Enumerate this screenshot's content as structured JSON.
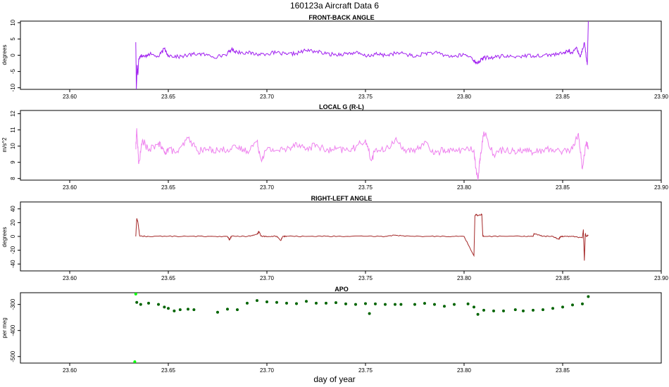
{
  "figure": {
    "title": "160123a   Aircraft Data 6",
    "xlabel": "day of year"
  },
  "chart_data": [
    {
      "type": "line",
      "title": "FRONT-BACK ANGLE",
      "ylabel": "degrees",
      "color": "#a020f0",
      "xlim": [
        23.575,
        23.9
      ],
      "ylim": [
        -10.5,
        10.5
      ],
      "xticks": [
        "23.60",
        "23.65",
        "23.70",
        "23.75",
        "23.80",
        "23.85",
        "23.90"
      ],
      "yticks": [
        "-10",
        "-5",
        "0",
        "5",
        "10"
      ],
      "series": [
        {
          "x": [
            23.6335,
            23.6338,
            23.6342,
            23.6346,
            23.635,
            23.636,
            23.638,
            23.64,
            23.645,
            23.648,
            23.65,
            23.655,
            23.66,
            23.665,
            23.67,
            23.675,
            23.68,
            23.682,
            23.685,
            23.69,
            23.695,
            23.7,
            23.705,
            23.71,
            23.715,
            23.72,
            23.725,
            23.73,
            23.735,
            23.74,
            23.745,
            23.75,
            23.755,
            23.76,
            23.765,
            23.77,
            23.775,
            23.78,
            23.785,
            23.79,
            23.795,
            23.8,
            23.804,
            23.806,
            23.808,
            23.81,
            23.815,
            23.82,
            23.825,
            23.83,
            23.835,
            23.84,
            23.845,
            23.85,
            23.853,
            23.855,
            23.857,
            23.859,
            23.861,
            23.8625,
            23.863
          ],
          "y": [
            4,
            -10.5,
            -3,
            -6,
            -1,
            0,
            -0.5,
            0.5,
            -0.5,
            2,
            0,
            -0.5,
            0,
            0.5,
            0,
            -0.5,
            0.5,
            1.8,
            1,
            0.8,
            0.3,
            0.5,
            0.8,
            0.2,
            0.6,
            1.5,
            1.2,
            0.4,
            0.2,
            0.5,
            0.8,
            -0.3,
            0.3,
            0,
            0.6,
            0.5,
            -0.5,
            0.6,
            0.8,
            0,
            -0.4,
            0.2,
            -0.8,
            -2.5,
            -1.8,
            -0.8,
            -0.6,
            -0.3,
            -0.5,
            -0.2,
            -0.1,
            0,
            0.2,
            0.5,
            1.5,
            0.5,
            2.5,
            -0.5,
            4,
            -3,
            10.5
          ]
        }
      ]
    },
    {
      "type": "line",
      "title": "LOCAL G (R-L)",
      "ylabel": "m/s^2",
      "color": "#ee82ee",
      "xlim": [
        23.575,
        23.9
      ],
      "ylim": [
        7.9,
        12.2
      ],
      "xticks": [
        "23.60",
        "23.65",
        "23.70",
        "23.75",
        "23.80",
        "23.85",
        "23.90"
      ],
      "yticks": [
        "8",
        "9",
        "10",
        "11",
        "12"
      ],
      "series": [
        {
          "x": [
            23.6335,
            23.634,
            23.635,
            23.637,
            23.64,
            23.645,
            23.648,
            23.65,
            23.655,
            23.66,
            23.665,
            23.67,
            23.675,
            23.68,
            23.685,
            23.69,
            23.695,
            23.697,
            23.7,
            23.705,
            23.71,
            23.715,
            23.72,
            23.725,
            23.73,
            23.735,
            23.74,
            23.745,
            23.75,
            23.753,
            23.755,
            23.76,
            23.765,
            23.77,
            23.775,
            23.78,
            23.785,
            23.79,
            23.795,
            23.8,
            23.805,
            23.806,
            23.807,
            23.808,
            23.81,
            23.815,
            23.82,
            23.825,
            23.83,
            23.835,
            23.84,
            23.845,
            23.85,
            23.855,
            23.858,
            23.86,
            23.862,
            23.863
          ],
          "y": [
            9.8,
            11.1,
            8.9,
            10.4,
            9.7,
            10.2,
            9.6,
            9.8,
            9.6,
            10.5,
            9.7,
            9.8,
            9.75,
            9.8,
            9.9,
            9.7,
            10.3,
            9.2,
            9.8,
            9.75,
            9.8,
            10.2,
            9.8,
            10.1,
            9.7,
            9.8,
            9.75,
            9.9,
            10.4,
            9.1,
            9.8,
            9.7,
            10.4,
            9.8,
            9.6,
            10.3,
            9.5,
            9.8,
            9.7,
            9.8,
            9.75,
            8.6,
            7.9,
            9.2,
            10.9,
            9.5,
            9.8,
            9.7,
            9.8,
            9.6,
            9.75,
            9.8,
            9.7,
            9.8,
            10.8,
            8.6,
            10.3,
            9.8
          ]
        }
      ]
    },
    {
      "type": "line",
      "title": "RIGHT-LEFT ANGLE",
      "ylabel": "degrees",
      "color": "#a52a2a",
      "xlim": [
        23.575,
        23.9
      ],
      "ylim": [
        -50,
        50
      ],
      "xticks": [
        "23.60",
        "23.65",
        "23.70",
        "23.75",
        "23.80",
        "23.85",
        "23.90"
      ],
      "yticks": [
        "-40",
        "-20",
        "0",
        "20",
        "40"
      ],
      "series": [
        {
          "x": [
            23.6335,
            23.634,
            23.6345,
            23.6355,
            23.64,
            23.65,
            23.66,
            23.67,
            23.68,
            23.681,
            23.682,
            23.69,
            23.695,
            23.696,
            23.697,
            23.7,
            23.705,
            23.707,
            23.708,
            23.71,
            23.72,
            23.73,
            23.74,
            23.75,
            23.76,
            23.765,
            23.77,
            23.78,
            23.79,
            23.8,
            23.805,
            23.8055,
            23.806,
            23.807,
            23.809,
            23.8095,
            23.81,
            23.82,
            23.83,
            23.835,
            23.8355,
            23.84,
            23.845,
            23.848,
            23.849,
            23.85,
            23.855,
            23.86,
            23.8605,
            23.861,
            23.8615,
            23.862,
            23.863
          ],
          "y": [
            0,
            26,
            22,
            0.5,
            0,
            0.3,
            0,
            0.2,
            0,
            -5,
            0.3,
            0,
            3,
            7,
            0.5,
            0,
            0.3,
            -6,
            0,
            0.2,
            0,
            0.3,
            0,
            0.2,
            0,
            2,
            0.2,
            0,
            0.3,
            0,
            -28,
            30,
            32,
            30,
            32,
            1,
            0,
            0.2,
            0,
            0.5,
            4,
            0.2,
            0,
            -4,
            0,
            0.2,
            0,
            -2,
            10,
            -35,
            4,
            0,
            2
          ]
        }
      ]
    },
    {
      "type": "scatter",
      "title": "APO",
      "ylabel": "per meg",
      "colors": [
        "#00ff00",
        "#006400"
      ],
      "xlim": [
        23.575,
        23.9
      ],
      "ylim": [
        -525,
        -255
      ],
      "xticks": [
        "23.60",
        "23.65",
        "23.70",
        "23.75",
        "23.80",
        "23.85"
      ],
      "yticks": [
        "-500",
        "-400",
        "-300"
      ],
      "series": [
        {
          "x": [
            23.633,
            23.6335,
            23.634,
            23.636,
            23.64,
            23.645,
            23.648,
            23.65,
            23.653,
            23.656,
            23.66,
            23.663,
            23.675,
            23.68,
            23.685,
            23.69,
            23.695,
            23.7,
            23.705,
            23.71,
            23.715,
            23.72,
            23.725,
            23.73,
            23.735,
            23.74,
            23.745,
            23.75,
            23.752,
            23.755,
            23.76,
            23.765,
            23.768,
            23.775,
            23.78,
            23.785,
            23.79,
            23.795,
            23.802,
            23.805,
            23.807,
            23.81,
            23.815,
            23.82,
            23.826,
            23.83,
            23.835,
            23.84,
            23.845,
            23.85,
            23.855,
            23.86,
            23.863
          ],
          "y": [
            -520,
            -260,
            -292,
            -300,
            -295,
            -300,
            -310,
            -315,
            -325,
            -320,
            -318,
            -320,
            -330,
            -318,
            -320,
            -295,
            -285,
            -290,
            -292,
            -295,
            -297,
            -288,
            -295,
            -295,
            -293,
            -298,
            -300,
            -297,
            -335,
            -298,
            -300,
            -300,
            -300,
            -300,
            -296,
            -300,
            -307,
            -300,
            -298,
            -310,
            -338,
            -322,
            -325,
            -325,
            -320,
            -325,
            -322,
            -320,
            -315,
            -310,
            -302,
            -298,
            -270
          ]
        }
      ]
    }
  ]
}
